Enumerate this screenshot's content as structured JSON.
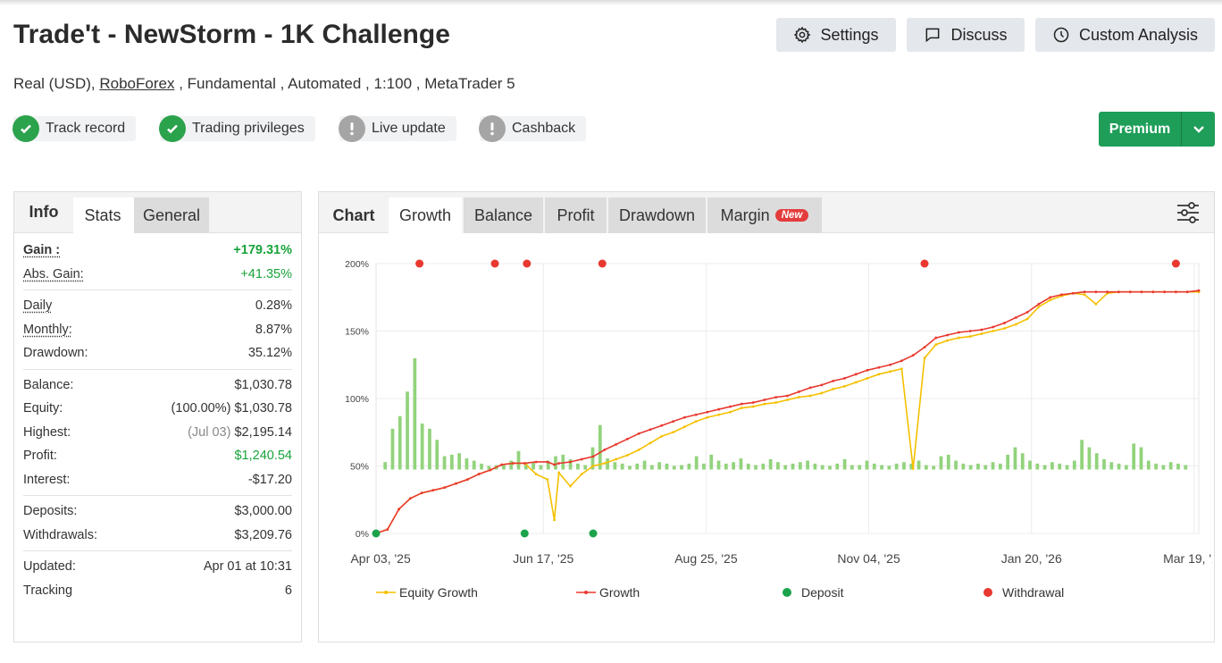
{
  "header": {
    "title": "Trade't - NewStorm - 1K Challenge",
    "buttons": {
      "settings": "Settings",
      "discuss": "Discuss",
      "custom_analysis": "Custom Analysis"
    },
    "sub_before": "Real (USD),",
    "sub_link": "RoboForex",
    "sub_after": ", Fundamental , Automated , 1:100 , MetaTrader 5",
    "badges": [
      "Track record",
      "Trading privileges",
      "Live update",
      "Cashback"
    ],
    "premium": "Premium"
  },
  "left": {
    "tabs": [
      "Info",
      "Stats",
      "General"
    ],
    "gain_label": "Gain :",
    "gain": "+179.31%",
    "abs_gain_label": "Abs. Gain:",
    "abs_gain": "+41.35%",
    "daily_label": "Daily",
    "daily": "0.28%",
    "monthly_label": "Monthly:",
    "monthly": "8.87%",
    "drawdown_label": "Drawdown:",
    "drawdown": "35.12%",
    "balance_label": "Balance:",
    "balance": "$1,030.78",
    "equity_label": "Equity:",
    "equity_pct": "(100.00%)",
    "equity": "$1,030.78",
    "highest_label": "Highest:",
    "highest_date": "(Jul 03)",
    "highest": "$2,195.14",
    "profit_label": "Profit:",
    "profit": "$1,240.54",
    "interest_label": "Interest:",
    "interest": "-$17.20",
    "deposits_label": "Deposits:",
    "deposits": "$3,000.00",
    "withdrawals_label": "Withdrawals:",
    "withdrawals": "$3,209.76",
    "updated_label": "Updated:",
    "updated": "Apr 01 at 10:31",
    "tracking_label": "Tracking",
    "tracking": "6"
  },
  "chart_tabs": {
    "head": "Chart",
    "tabs": [
      "Growth",
      "Balance",
      "Profit",
      "Drawdown",
      "Margin"
    ],
    "new_badge": "New"
  },
  "colors": {
    "growth": "#e8382f",
    "equity": "#f5c000",
    "deposit": "#1aa34a",
    "withdrawal": "#e8382f",
    "bars": "#92d37c",
    "green": "#18a33b",
    "premium": "#1e9e58"
  },
  "icons": [
    "gear-icon",
    "chat-icon",
    "clock-icon",
    "check-icon",
    "exclamation-icon",
    "chevron-down-icon",
    "sliders-icon"
  ],
  "chart_data": {
    "type": "line",
    "x_ticks": [
      "Apr 03, '25",
      "Jun 17, '25",
      "Aug 25, '25",
      "Nov 04, '25",
      "Jan 20, '26",
      "Mar 19, '26"
    ],
    "y_ticks": [
      "0%",
      "50%",
      "100%",
      "150%",
      "200%"
    ],
    "ylim": [
      0,
      200
    ],
    "grid": true,
    "legend_position": "bottom",
    "series": [
      {
        "name": "Equity Growth",
        "x": [
          0,
          5,
          10,
          15,
          20,
          25,
          30,
          35,
          40,
          45,
          50,
          55,
          60,
          65,
          70,
          75,
          78,
          80,
          85,
          90,
          95,
          100,
          105,
          110,
          115,
          120,
          125,
          130,
          135,
          140,
          145,
          150,
          155,
          160,
          165,
          170,
          175,
          180,
          185,
          190,
          195,
          200,
          205,
          210,
          215,
          220,
          225,
          230,
          235,
          240,
          245,
          250,
          255,
          260,
          265,
          270,
          275,
          280,
          285,
          290,
          295,
          300,
          305,
          310,
          315,
          320,
          325,
          330,
          335,
          340,
          345,
          350,
          355,
          360
        ],
        "values": [
          0,
          3,
          18,
          26,
          30,
          32,
          34,
          37,
          40,
          44,
          47,
          51,
          52,
          52,
          44,
          40,
          10,
          45,
          35,
          44,
          50,
          52,
          55,
          58,
          62,
          67,
          72,
          75,
          79,
          83,
          86,
          88,
          90,
          93,
          94,
          96,
          97,
          99,
          101,
          102,
          104,
          107,
          109,
          112,
          115,
          118,
          120,
          122,
          48,
          130,
          140,
          143,
          145,
          146,
          148,
          150,
          152,
          155,
          159,
          168,
          173,
          176,
          178,
          177,
          170,
          178,
          179,
          179,
          179,
          179,
          179,
          179,
          179,
          179
        ]
      },
      {
        "name": "Growth",
        "x": [
          0,
          5,
          10,
          15,
          20,
          25,
          30,
          35,
          40,
          45,
          50,
          55,
          60,
          65,
          70,
          75,
          78,
          80,
          85,
          90,
          95,
          100,
          105,
          110,
          115,
          120,
          125,
          130,
          135,
          140,
          145,
          150,
          155,
          160,
          165,
          170,
          175,
          180,
          185,
          190,
          195,
          200,
          205,
          210,
          215,
          220,
          225,
          230,
          235,
          240,
          245,
          250,
          255,
          260,
          265,
          270,
          275,
          280,
          285,
          290,
          295,
          300,
          305,
          310,
          315,
          320,
          325,
          330,
          335,
          340,
          345,
          350,
          355,
          360
        ],
        "values": [
          0,
          3,
          18,
          26,
          30,
          32,
          34,
          37,
          40,
          44,
          47,
          51,
          52,
          52,
          53,
          53,
          51,
          52,
          53,
          55,
          57,
          62,
          66,
          70,
          74,
          77,
          80,
          83,
          86,
          88,
          90,
          92,
          94,
          96,
          97,
          99,
          101,
          102,
          105,
          108,
          110,
          113,
          115,
          118,
          121,
          123,
          125,
          128,
          132,
          138,
          145,
          147,
          149,
          150,
          151,
          153,
          156,
          160,
          164,
          170,
          175,
          177,
          178,
          179,
          179,
          179,
          179,
          179,
          179,
          179,
          179,
          179,
          179,
          180
        ]
      },
      {
        "name": "Deposit",
        "x": [
          0,
          65,
          95
        ],
        "values": [
          0,
          0,
          0
        ]
      },
      {
        "name": "Withdrawal",
        "x": [
          19,
          52,
          66,
          99,
          240,
          350
        ],
        "values": [
          200,
          200,
          200,
          200,
          200,
          200
        ]
      }
    ],
    "bars_description_values": [
      10,
      55,
      72,
      105,
      150,
      62,
      55,
      40,
      18,
      20,
      22,
      15,
      12,
      8,
      5,
      6,
      6,
      12,
      25,
      8,
      10,
      6,
      12,
      18,
      20,
      14,
      8,
      6,
      30,
      60,
      15,
      10,
      8,
      5,
      8,
      12,
      6,
      10,
      8,
      5,
      6,
      8,
      18,
      8,
      20,
      12,
      8,
      10,
      15,
      8,
      6,
      8,
      14,
      10,
      6,
      8,
      10,
      12,
      8,
      6,
      5,
      8,
      14,
      6,
      6,
      12,
      8,
      6,
      5,
      8,
      10,
      8,
      12,
      6,
      5,
      18,
      20,
      12,
      8,
      6,
      8,
      6,
      10,
      8,
      20,
      30,
      22,
      12,
      8,
      6,
      10,
      8,
      6,
      12,
      40,
      30,
      22,
      14,
      10,
      8,
      6,
      35,
      30,
      12,
      8,
      6,
      10,
      8,
      6
    ]
  },
  "legend": [
    "Equity Growth",
    "Growth",
    "Deposit",
    "Withdrawal"
  ]
}
